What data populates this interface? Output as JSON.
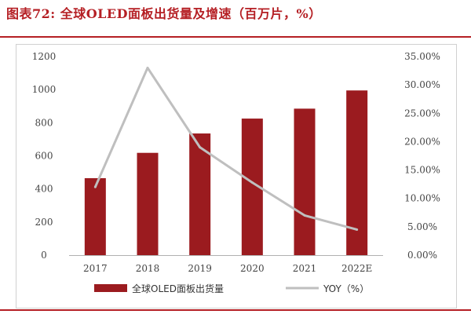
{
  "header": {
    "title": "图表72: 全球OLED面板出货量及增速（百万片，%）"
  },
  "colors": {
    "accent": "#b51f24",
    "bar": "#9b1b1f",
    "line": "#bfbfbf"
  },
  "chart_data": {
    "type": "bar",
    "title": "全球OLED面板出货量及增速（百万片，%）",
    "categories": [
      "2017",
      "2018",
      "2019",
      "2020",
      "2021",
      "2022E"
    ],
    "series": [
      {
        "name": "全球OLED面板出货量",
        "type": "bar",
        "axis": "left",
        "values": [
          465,
          618,
          735,
          825,
          885,
          995
        ]
      },
      {
        "name": "YOY（%）",
        "type": "line",
        "axis": "right",
        "values": [
          12.0,
          33.0,
          19.0,
          12.8,
          7.0,
          4.5
        ]
      }
    ],
    "yaxis_left": {
      "min": 0,
      "max": 1200,
      "ticks": [
        "0",
        "200",
        "400",
        "600",
        "800",
        "1000",
        "1200"
      ]
    },
    "yaxis_right": {
      "min": 0,
      "max": 35,
      "ticks": [
        "0.00%",
        "5.00%",
        "10.00%",
        "15.00%",
        "20.00%",
        "25.00%",
        "30.00%",
        "35.00%"
      ]
    },
    "legend": {
      "position": "bottom",
      "entries": [
        "全球OLED面板出货量",
        "YOY（%）"
      ]
    },
    "grid": false
  }
}
